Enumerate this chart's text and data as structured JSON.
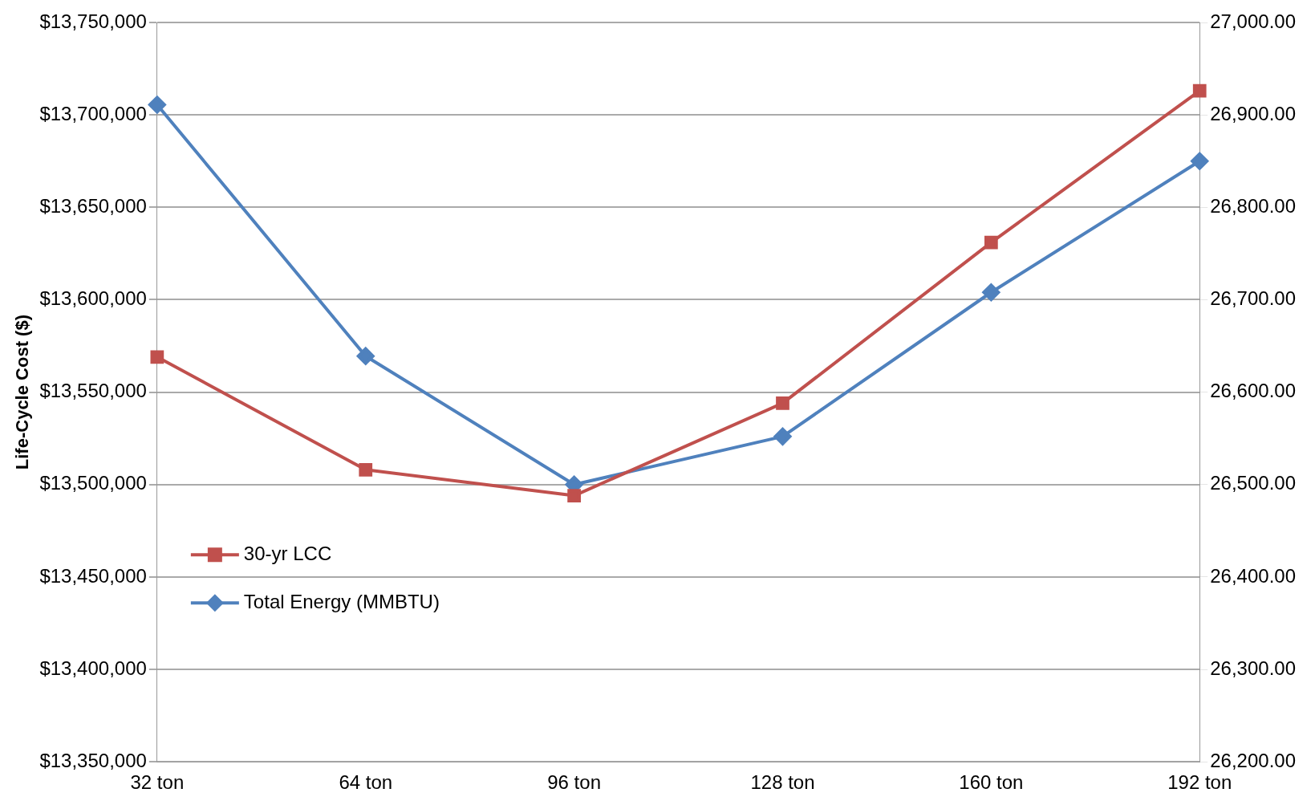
{
  "chart_data": {
    "type": "line",
    "ylabel": "Life-Cycle Cost ($)",
    "categories": [
      "32 ton",
      "64 ton",
      "96 ton",
      "128 ton",
      "160 ton",
      "192 ton"
    ],
    "series": [
      {
        "name": "30-yr LCC",
        "color": "#c0504d",
        "marker": "square",
        "values": [
          13569000,
          13508000,
          13494000,
          13544000,
          13631000,
          13713000
        ]
      },
      {
        "name": "Total Energy (MMBTU)",
        "color": "#4f81bd",
        "marker": "diamond",
        "axis": "y2",
        "values": [
          26911,
          26639,
          26500,
          26552,
          26708,
          26850
        ]
      }
    ],
    "ylim": [
      13350000,
      13750000
    ],
    "yticks": [
      {
        "value": 13350000,
        "label": "$13,350,000"
      },
      {
        "value": 13400000,
        "label": "$13,400,000"
      },
      {
        "value": 13450000,
        "label": "$13,450,000"
      },
      {
        "value": 13500000,
        "label": "$13,500,000"
      },
      {
        "value": 13550000,
        "label": "$13,550,000"
      },
      {
        "value": 13600000,
        "label": "$13,600,000"
      },
      {
        "value": 13650000,
        "label": "$13,650,000"
      },
      {
        "value": 13700000,
        "label": "$13,700,000"
      },
      {
        "value": 13750000,
        "label": "$13,750,000"
      }
    ],
    "y2lim": [
      26200,
      27000
    ],
    "y2ticks": [
      {
        "value": 26200,
        "label": "26,200.00"
      },
      {
        "value": 26300,
        "label": "26,300.00"
      },
      {
        "value": 26400,
        "label": "26,400.00"
      },
      {
        "value": 26500,
        "label": "26,500.00"
      },
      {
        "value": 26600,
        "label": "26,600.00"
      },
      {
        "value": 26700,
        "label": "26,700.00"
      },
      {
        "value": 26800,
        "label": "26,800.00"
      },
      {
        "value": 26900,
        "label": "26,900.00"
      },
      {
        "value": 27000,
        "label": "27,000.00"
      }
    ],
    "grid": "y",
    "legend": "left"
  }
}
